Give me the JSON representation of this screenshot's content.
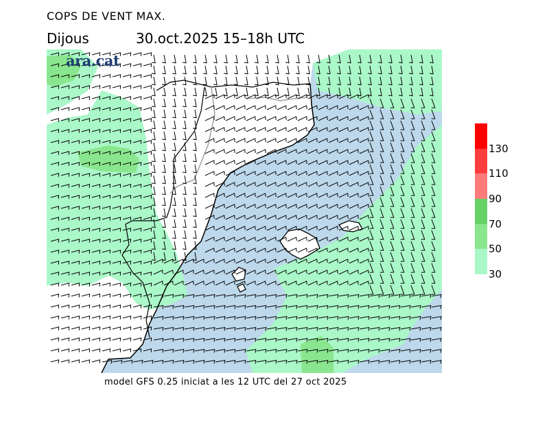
{
  "header": {
    "title": "COPS DE VENT MAX.",
    "day": "Dijous",
    "date_time": "30.oct.2025 15–18h UTC"
  },
  "logo": {
    "text": "ara.cat"
  },
  "footer": {
    "model_info": "model GFS 0.25 iniciat a les 12 UTC del 27 oct 2025"
  },
  "legend": {
    "ticks": [
      "30",
      "50",
      "70",
      "90",
      "110",
      "130"
    ],
    "bins": [
      {
        "from": 30,
        "to": 50,
        "color": "#aaf7c8"
      },
      {
        "from": 50,
        "to": 70,
        "color": "#8ae68e"
      },
      {
        "from": 70,
        "to": 90,
        "color": "#66d266"
      },
      {
        "from": 90,
        "to": 110,
        "color": "#ff7b7b"
      },
      {
        "from": 110,
        "to": 130,
        "color": "#ff3d3d"
      },
      {
        "from": 130,
        "to": 150,
        "color": "#ff0000"
      }
    ]
  },
  "colors": {
    "sea": "#bdd8eb",
    "land": "#ffffff",
    "band_light": "#aaf7c8",
    "band_mid": "#8ae68e",
    "band_dark": "#66d266",
    "border": "#a0a0a0",
    "coast": "#000000"
  }
}
